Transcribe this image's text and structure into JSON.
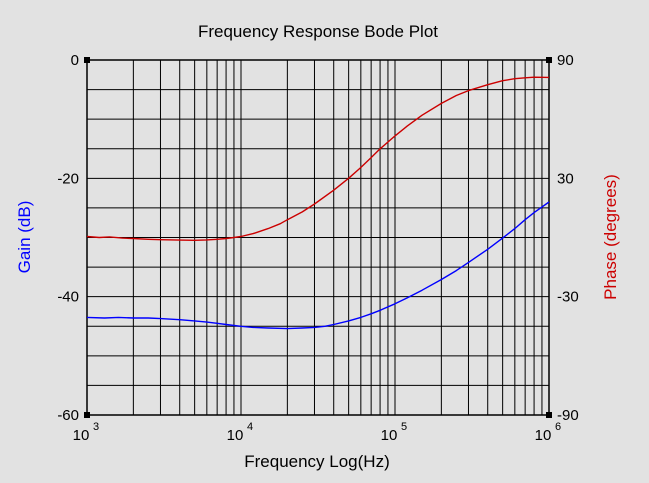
{
  "chart_data": {
    "type": "line",
    "title": "Frequency Response Bode Plot",
    "xlabel": "Frequency Log(Hz)",
    "x_scale": "log",
    "xlim": [
      1000,
      1000000
    ],
    "x_ticks": [
      {
        "base": "10",
        "exp": "3",
        "value": 1000
      },
      {
        "base": "10",
        "exp": "4",
        "value": 10000
      },
      {
        "base": "10",
        "exp": "5",
        "value": 100000
      },
      {
        "base": "10",
        "exp": "6",
        "value": 1000000
      }
    ],
    "y_left": {
      "label": "Gain (dB)",
      "color": "#0000ff",
      "ylim": [
        -60,
        0
      ],
      "ticks": [
        {
          "label": "0",
          "value": 0
        },
        {
          "label": "-20",
          "value": -20
        },
        {
          "label": "-40",
          "value": -40
        },
        {
          "label": "-60",
          "value": -60
        }
      ]
    },
    "y_right": {
      "label": "Phase (degrees)",
      "color": "#cc0000",
      "ylim": [
        -90,
        90
      ],
      "ticks": [
        {
          "label": "90",
          "value": 90
        },
        {
          "label": "30",
          "value": 30
        },
        {
          "label": "-30",
          "value": -30
        },
        {
          "label": "-90",
          "value": -90
        }
      ]
    },
    "grid": true,
    "series": [
      {
        "axis": "left",
        "color": "#0000ff",
        "x": [
          1000,
          1300,
          1600,
          2000,
          2500,
          3000,
          4000,
          5000,
          6000,
          7000,
          8000,
          10000,
          12000,
          15000,
          20000,
          25000,
          30000,
          35000,
          40000,
          50000,
          60000,
          70000,
          80000,
          100000,
          120000,
          150000,
          200000,
          250000,
          300000,
          400000,
          500000,
          600000,
          700000,
          800000,
          1000000
        ],
        "values": [
          -43.5,
          -43.6,
          -43.5,
          -43.6,
          -43.6,
          -43.7,
          -43.9,
          -44.1,
          -44.3,
          -44.5,
          -44.7,
          -45.0,
          -45.2,
          -45.3,
          -45.4,
          -45.3,
          -45.2,
          -45.0,
          -44.7,
          -44.1,
          -43.5,
          -42.9,
          -42.3,
          -41.2,
          -40.2,
          -38.9,
          -37.1,
          -35.6,
          -34.2,
          -32.0,
          -30.1,
          -28.5,
          -27.0,
          -25.8,
          -24.0
        ]
      },
      {
        "axis": "right",
        "color": "#cc0000",
        "x": [
          1000,
          1200,
          1400,
          1700,
          2000,
          2500,
          3000,
          4000,
          5000,
          6000,
          7000,
          8000,
          9000,
          10000,
          12000,
          15000,
          18000,
          20000,
          25000,
          30000,
          40000,
          50000,
          60000,
          70000,
          80000,
          100000,
          120000,
          150000,
          200000,
          250000,
          300000,
          400000,
          500000,
          600000,
          700000,
          800000,
          1000000
        ],
        "values": [
          0.5,
          0.0,
          0.3,
          -0.3,
          -0.5,
          -0.9,
          -1.1,
          -1.3,
          -1.4,
          -1.2,
          -0.9,
          -0.5,
          0.0,
          0.5,
          2.0,
          4.5,
          7.0,
          9.0,
          13.0,
          17.0,
          24.0,
          30.0,
          35.5,
          40.5,
          45.0,
          51.5,
          56.5,
          62.0,
          68.0,
          72.0,
          74.5,
          77.5,
          79.5,
          80.5,
          81.0,
          81.3,
          81.2
        ]
      }
    ]
  },
  "colors": {
    "background": "#e2e2e2",
    "grid": "#000000",
    "gain_line": "#0000ff",
    "phase_line": "#cc0000"
  }
}
